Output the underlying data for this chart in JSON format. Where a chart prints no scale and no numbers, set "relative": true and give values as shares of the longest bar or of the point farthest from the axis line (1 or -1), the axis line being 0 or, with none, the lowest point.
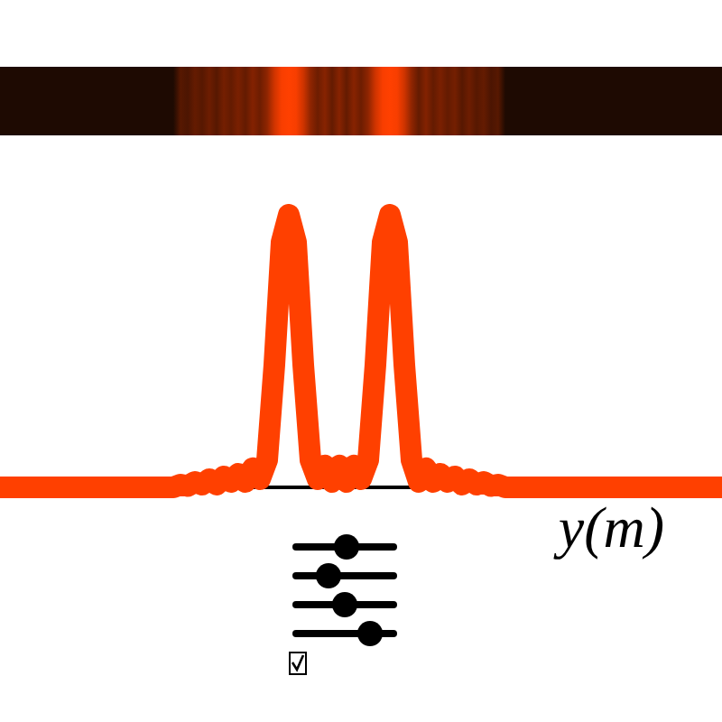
{
  "chart_data": {
    "type": "line",
    "xlabel": "y(m)",
    "relative": true,
    "color": "#ff4000",
    "grid": false,
    "categories": [
      null,
      null,
      null,
      null,
      null,
      null,
      null,
      null,
      null,
      null,
      null,
      null,
      null,
      null,
      null,
      null,
      null,
      null,
      null,
      null,
      null,
      null,
      null,
      null,
      null,
      null,
      null,
      null,
      null,
      null,
      null,
      null,
      null,
      null,
      null,
      null,
      null,
      null,
      null,
      null,
      null,
      null,
      null,
      null,
      null,
      null,
      null,
      null,
      null,
      null,
      null,
      null,
      null,
      null,
      null,
      null,
      null,
      null,
      null,
      null,
      null,
      null,
      null,
      null,
      null,
      null,
      null,
      null,
      null,
      null,
      null,
      null,
      null,
      null,
      null,
      null,
      null,
      null,
      null,
      null,
      null,
      null,
      null,
      null,
      null,
      null,
      null,
      null,
      null,
      null,
      null,
      null,
      null,
      null,
      null,
      null,
      null,
      null,
      null,
      null,
      null
    ],
    "values": [
      0,
      0,
      0,
      0,
      0,
      0,
      0,
      0,
      0,
      0,
      0,
      0,
      0,
      0,
      0,
      0,
      0,
      0,
      0,
      0,
      0,
      0,
      0,
      0,
      0,
      0.01,
      0.005,
      0.02,
      0.01,
      0.03,
      0.01,
      0.04,
      0.02,
      0.05,
      0.02,
      0.07,
      0.03,
      0.1,
      0.45,
      0.9,
      1.0,
      0.9,
      0.45,
      0.1,
      0.03,
      0.08,
      0.02,
      0.08,
      0.02,
      0.08,
      0.03,
      0.1,
      0.45,
      0.9,
      1.0,
      0.9,
      0.45,
      0.1,
      0.02,
      0.07,
      0.02,
      0.05,
      0.02,
      0.04,
      0.01,
      0.03,
      0.01,
      0.02,
      0.005,
      0.01,
      0,
      0,
      0,
      0,
      0,
      0,
      0,
      0,
      0,
      0,
      0,
      0,
      0,
      0,
      0,
      0,
      0,
      0,
      0,
      0,
      0,
      0,
      0,
      0,
      0,
      0,
      0,
      0,
      0,
      0,
      0
    ]
  }
}
